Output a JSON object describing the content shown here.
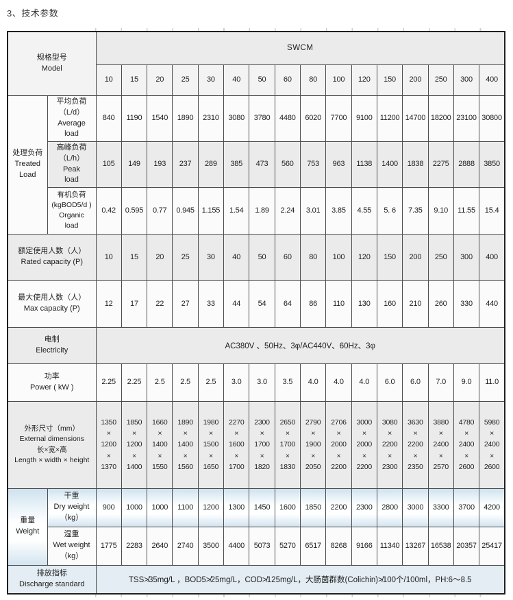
{
  "page": {
    "title": "3、技术参数"
  },
  "colors": {
    "row_gray": "#ebebeb",
    "row_light": "#fbfbfb",
    "discharge_band": "#e3edf3",
    "border": "#4c4c4c",
    "watermark_blue": "#a4c7e0"
  },
  "table": {
    "corner": "规格型号\nModel",
    "series": "SWCM",
    "models": [
      "10",
      "15",
      "20",
      "25",
      "30",
      "40",
      "50",
      "60",
      "80",
      "100",
      "120",
      "150",
      "200",
      "250",
      "300",
      "400"
    ],
    "treated_load": {
      "group": "处理负荷\nTreated\nLoad",
      "average": {
        "label": "平均负荷\n（L/d）\nAverage\nload",
        "values": [
          "840",
          "1190",
          "1540",
          "1890",
          "2310",
          "3080",
          "3780",
          "4480",
          "6020",
          "7700",
          "9100",
          "11200",
          "14700",
          "18200",
          "23100",
          "30800"
        ]
      },
      "peak": {
        "label": "高峰负荷\n（L/h）\nPeak\nload",
        "values": [
          "105",
          "149",
          "193",
          "237",
          "289",
          "385",
          "473",
          "560",
          "753",
          "963",
          "1138",
          "1400",
          "1838",
          "2275",
          "2888",
          "3850"
        ]
      },
      "organic": {
        "label": "有机负荷\n(kgBOD5/d )\nOrganic\nload",
        "values": [
          "0.42",
          "0.595",
          "0.77",
          "0.945",
          "1.155",
          "1.54",
          "1.89",
          "2.24",
          "3.01",
          "3.85",
          "4.55",
          "5. 6",
          "7.35",
          "9.10",
          "11.55",
          "15.4"
        ]
      }
    },
    "rated": {
      "label": "额定使用人数（人）\nRated capacity (P)",
      "values": [
        "10",
        "15",
        "20",
        "25",
        "30",
        "40",
        "50",
        "60",
        "80",
        "100",
        "120",
        "150",
        "200",
        "250",
        "300",
        "400"
      ]
    },
    "max": {
      "label": "最大使用人数（人）\nMax capacity (P)",
      "values": [
        "12",
        "17",
        "22",
        "27",
        "33",
        "44",
        "54",
        "64",
        "86",
        "110",
        "130",
        "160",
        "210",
        "260",
        "330",
        "440"
      ]
    },
    "electricity": {
      "label": "电制\nElectricity",
      "value": "AC380V 、50Hz、3φ/AC440V、60Hz、3φ"
    },
    "power": {
      "label": "功率\nPower ( kW )",
      "values": [
        "2.25",
        "2.25",
        "2.5",
        "2.5",
        "2.5",
        "3.0",
        "3.0",
        "3.5",
        "4.0",
        "4.0",
        "4.0",
        "6.0",
        "6.0",
        "7.0",
        "9.0",
        "11.0"
      ]
    },
    "dimensions": {
      "label": "外形尺寸（mm）\nExternal dimensions\n长×宽×高\nLength × width × height",
      "values": [
        "1350\n×\n1200\n×\n1370",
        "1850\n×\n1200\n×\n1400",
        "1660\n×\n1400\n×\n1550",
        "1890\n×\n1400\n×\n1560",
        "1980\n×\n1500\n×\n1650",
        "2270\n×\n1600\n×\n1700",
        "2300\n×\n1700\n×\n1820",
        "2650\n×\n1700\n×\n1830",
        "2790\n×\n1900\n×\n2050",
        "2706\n×\n2000\n×\n2200",
        "3000\n×\n2000\n×\n2200",
        "3080\n×\n2200\n×\n2300",
        "3630\n×\n2200\n×\n2350",
        "3880\n×\n2400\n×\n2570",
        "4780\n×\n2400\n×\n2600",
        "5980\n×\n2400\n×\n2600"
      ]
    },
    "weight": {
      "group": "重量\nWeight",
      "dry": {
        "label": "干重\nDry weight\n（kg）",
        "values": [
          "900",
          "1000",
          "1000",
          "1100",
          "1200",
          "1300",
          "1450",
          "1600",
          "1850",
          "2200",
          "2300",
          "2800",
          "3000",
          "3300",
          "3700",
          "4200"
        ]
      },
      "wet": {
        "label": "湿重\nWet weight\n（kg）",
        "values": [
          "1775",
          "2283",
          "2640",
          "2740",
          "3500",
          "4400",
          "5073",
          "5270",
          "6517",
          "8268",
          "9166",
          "11340",
          "13267",
          "16538",
          "20357",
          "25417"
        ]
      }
    },
    "discharge": {
      "label": "排放指标\nDischarge standard",
      "value": "TSS≯35mg/L ，BOD5≯25mg/L，COD≯125mg/L，大肠菌群数(Colichin)≯100个/100ml，PH:6～8.5"
    }
  }
}
